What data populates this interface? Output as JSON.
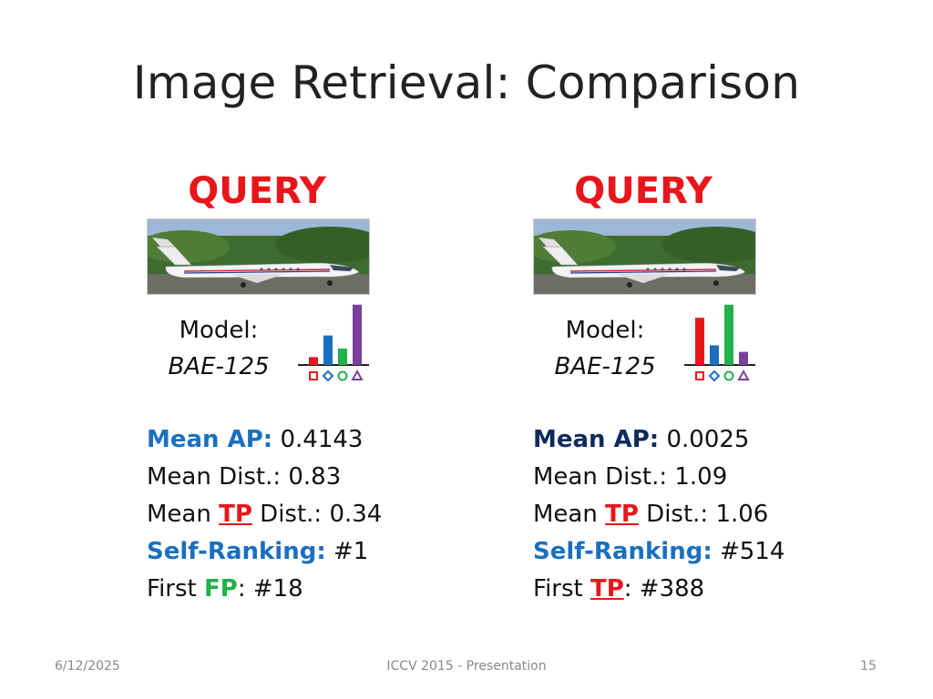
{
  "title": "Image Retrieval: Comparison",
  "colors": {
    "accent_red": "#e8161b",
    "blue": "#1b6fbe",
    "navy": "#0c2b5e",
    "green": "#22b04a",
    "purple": "#7b3fa0"
  },
  "panels": [
    {
      "query_label": "QUERY",
      "model_label": "Model:",
      "model_name": "BAE-125",
      "mini_chart": {
        "values": [
          0.12,
          0.45,
          0.25,
          0.92
        ],
        "colors": [
          "#e8161b",
          "#1b6fbe",
          "#22b04a",
          "#7b3fa0"
        ],
        "icons": [
          "square",
          "diamond",
          "circle",
          "triangle"
        ]
      },
      "stats": {
        "mean_ap_label": "Mean AP:",
        "mean_ap_value": " 0.4143",
        "mean_dist_text": "Mean Dist.: 0.83",
        "mean_tp_prefix": "Mean ",
        "mean_tp_hl": "TP",
        "mean_tp_suffix": " Dist.: 0.34",
        "self_rank_label": "Self-Ranking:",
        "self_rank_value": " #1",
        "first_prefix": "First ",
        "first_hl": "FP",
        "first_suffix": ": #18"
      }
    },
    {
      "query_label": "QUERY",
      "model_label": "Model:",
      "model_name": "BAE-125",
      "mini_chart": {
        "values": [
          0.72,
          0.3,
          0.92,
          0.2
        ],
        "colors": [
          "#e8161b",
          "#1b6fbe",
          "#22b04a",
          "#7b3fa0"
        ],
        "icons": [
          "square",
          "diamond",
          "circle",
          "triangle"
        ]
      },
      "stats": {
        "mean_ap_label": "Mean AP:",
        "mean_ap_value": " 0.0025",
        "mean_dist_text": "Mean Dist.: 1.09",
        "mean_tp_prefix": "Mean ",
        "mean_tp_hl": "TP",
        "mean_tp_suffix": " Dist.: 1.06",
        "self_rank_label": "Self-Ranking:",
        "self_rank_value": " #514",
        "first_prefix": "First ",
        "first_hl": "TP",
        "first_suffix": ": #388"
      }
    }
  ],
  "footer": {
    "date": "6/12/2025",
    "center": "ICCV 2015 - Presentation",
    "page": "15"
  }
}
